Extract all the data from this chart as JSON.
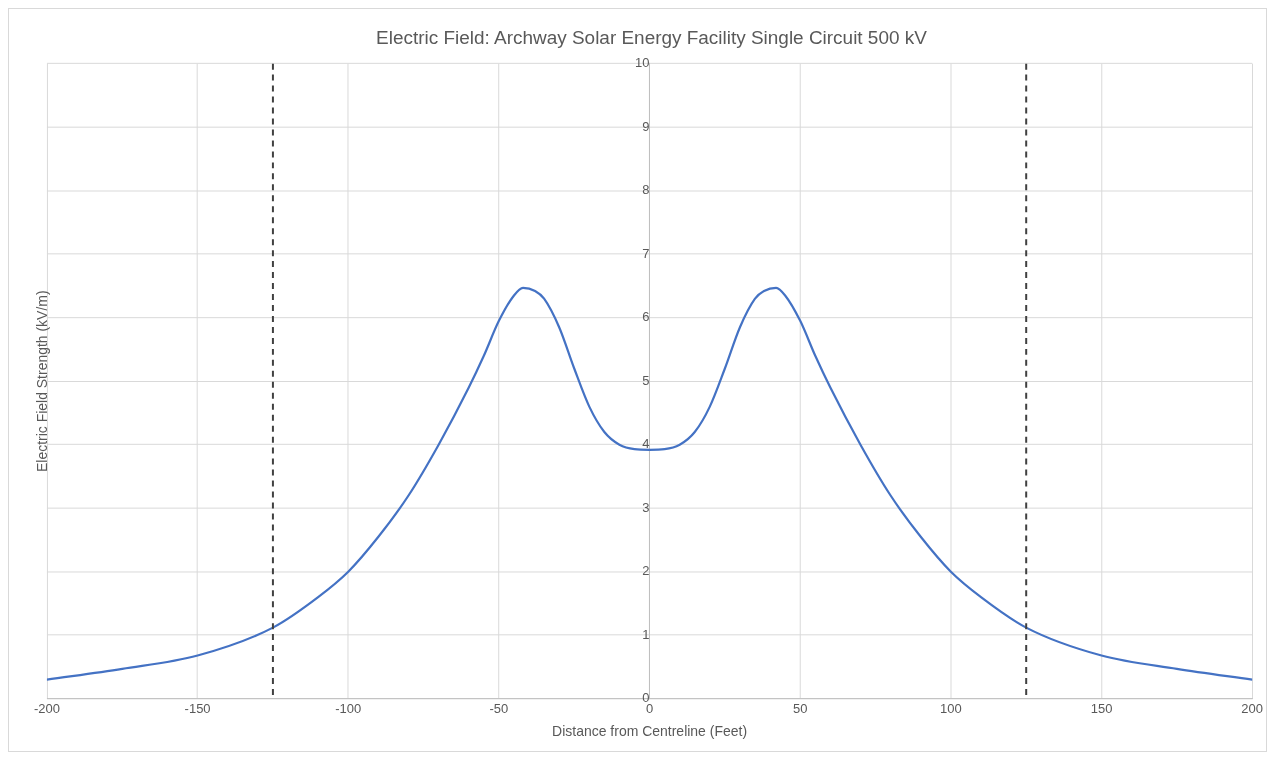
{
  "chart_data": {
    "type": "line",
    "title": "Electric Field: Archway Solar Energy Facility Single Circuit 500 kV",
    "xlabel": "Distance from Centreline (Feet)",
    "ylabel": "Electric Field Strength (kV/m)",
    "series": [
      {
        "color": "#4472c4",
        "x": [
          -200,
          -175,
          -150,
          -125,
          -110,
          -100,
          -90,
          -80,
          -70,
          -60,
          -55,
          -50,
          -45,
          -42,
          -38,
          -35,
          -30,
          -25,
          -20,
          -15,
          -10,
          -5,
          0,
          5,
          10,
          15,
          20,
          25,
          30,
          35,
          38,
          42,
          45,
          50,
          55,
          60,
          70,
          80,
          90,
          100,
          110,
          125,
          150,
          175,
          200
        ],
        "values": [
          0.3,
          0.47,
          0.68,
          1.12,
          1.6,
          2.0,
          2.55,
          3.2,
          4.0,
          4.9,
          5.4,
          5.95,
          6.35,
          6.47,
          6.42,
          6.3,
          5.85,
          5.2,
          4.6,
          4.2,
          4.0,
          3.93,
          3.92,
          3.93,
          4.0,
          4.2,
          4.6,
          5.2,
          5.85,
          6.3,
          6.42,
          6.47,
          6.35,
          5.95,
          5.4,
          4.9,
          4.0,
          3.2,
          2.55,
          2.0,
          1.6,
          1.12,
          0.68,
          0.47,
          0.3
        ]
      }
    ],
    "xlim": [
      -200,
      200
    ],
    "xticks": [
      -200,
      -150,
      -100,
      -50,
      0,
      50,
      100,
      150,
      200
    ],
    "ylim": [
      0,
      10
    ],
    "yticks": [
      0,
      1,
      2,
      3,
      4,
      5,
      6,
      7,
      8,
      9,
      10
    ],
    "ref_lines": [
      {
        "axis": "x",
        "value": -125,
        "color": "#404040",
        "line_style": "dashed"
      },
      {
        "axis": "x",
        "value": 125,
        "color": "#404040",
        "line_style": "dashed"
      }
    ],
    "grid": true,
    "legend": false,
    "marker": "none",
    "line_style": "solid"
  }
}
